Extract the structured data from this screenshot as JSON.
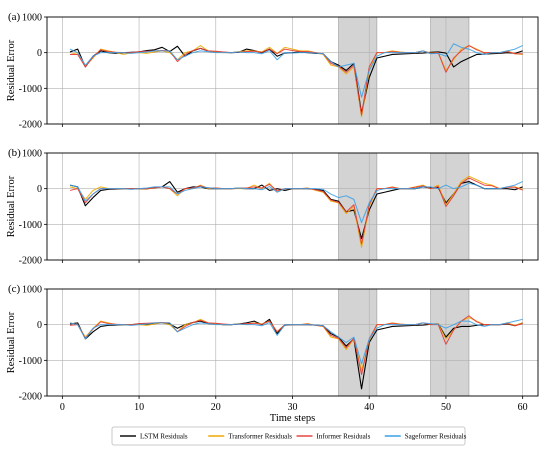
{
  "chart_data": {
    "type": "line",
    "x_label": "Time steps",
    "y_label": "Residual Error",
    "xlim": [
      -2,
      62
    ],
    "ylim": [
      -2000,
      1000
    ],
    "x_ticks": [
      0,
      10,
      20,
      30,
      40,
      50,
      60
    ],
    "y_ticks": [
      1000,
      0,
      -1000,
      -2000
    ],
    "grid": true,
    "legend_position": "bottom-center",
    "shaded_regions": [
      [
        36,
        41
      ],
      [
        48,
        53
      ]
    ],
    "x": [
      1,
      2,
      3,
      4,
      5,
      6,
      7,
      8,
      9,
      10,
      11,
      12,
      13,
      14,
      15,
      16,
      17,
      18,
      19,
      20,
      21,
      22,
      23,
      24,
      25,
      26,
      27,
      28,
      29,
      30,
      31,
      32,
      33,
      34,
      35,
      36,
      37,
      38,
      39,
      40,
      41,
      42,
      43,
      44,
      45,
      46,
      47,
      48,
      49,
      50,
      51,
      52,
      53,
      54,
      55,
      56,
      57,
      58,
      59,
      60
    ],
    "series_styles": [
      {
        "name": "LSTM Residuals",
        "color": "#000000"
      },
      {
        "name": "Transformer Residuals",
        "color": "#f0a800"
      },
      {
        "name": "Informer Residuals",
        "color": "#e53935"
      },
      {
        "name": "Sageformer Residuals",
        "color": "#3aa0e8"
      }
    ],
    "panels": [
      {
        "label": "(a)",
        "series": [
          {
            "name": "LSTM Residuals",
            "values": [
              20,
              100,
              -400,
              -100,
              50,
              0,
              -20,
              0,
              10,
              20,
              60,
              80,
              150,
              30,
              180,
              -100,
              50,
              120,
              50,
              20,
              10,
              0,
              10,
              100,
              60,
              0,
              100,
              -100,
              -10,
              0,
              20,
              0,
              -20,
              -30,
              -250,
              -350,
              -500,
              -300,
              -1700,
              -700,
              -150,
              -100,
              -50,
              -40,
              -30,
              -20,
              -10,
              10,
              20,
              -10,
              -400,
              -250,
              -150,
              -50,
              -40,
              -30,
              -20,
              0,
              -20,
              50
            ]
          },
          {
            "name": "Transformer Residuals",
            "values": [
              -50,
              0,
              -380,
              -150,
              100,
              50,
              0,
              -50,
              0,
              0,
              -20,
              20,
              50,
              0,
              -200,
              0,
              50,
              200,
              50,
              20,
              0,
              0,
              30,
              50,
              50,
              20,
              150,
              -20,
              150,
              100,
              50,
              50,
              0,
              -50,
              -350,
              -400,
              -600,
              -400,
              -1800,
              -500,
              0,
              0,
              50,
              20,
              0,
              0,
              50,
              -10,
              0,
              -500,
              -200,
              100,
              200,
              100,
              0,
              0,
              0,
              50,
              -30,
              -50
            ]
          },
          {
            "name": "Informer Residuals",
            "values": [
              -50,
              -50,
              -400,
              -120,
              80,
              30,
              10,
              0,
              0,
              30,
              40,
              50,
              60,
              50,
              -250,
              -50,
              60,
              120,
              50,
              40,
              20,
              0,
              20,
              30,
              40,
              10,
              100,
              -30,
              100,
              60,
              30,
              30,
              0,
              -30,
              -300,
              -380,
              -550,
              -350,
              -1750,
              -400,
              0,
              0,
              30,
              10,
              0,
              0,
              50,
              -20,
              0,
              -550,
              -150,
              50,
              200,
              80,
              0,
              0,
              0,
              30,
              -30,
              -30
            ]
          },
          {
            "name": "Sageformer Residuals",
            "values": [
              100,
              0,
              -350,
              -100,
              0,
              0,
              0,
              0,
              -20,
              0,
              20,
              50,
              50,
              50,
              -200,
              -100,
              0,
              50,
              30,
              0,
              0,
              0,
              20,
              0,
              0,
              -30,
              60,
              -200,
              0,
              -10,
              0,
              0,
              -10,
              -30,
              -250,
              -400,
              -350,
              -300,
              -1250,
              -500,
              -100,
              0,
              0,
              0,
              0,
              0,
              50,
              -30,
              -20,
              -100,
              250,
              150,
              100,
              0,
              -50,
              0,
              0,
              50,
              100,
              200
            ]
          }
        ]
      },
      {
        "label": "(b)",
        "series": [
          {
            "name": "LSTM Residuals",
            "values": [
              100,
              50,
              -480,
              -250,
              -50,
              -20,
              -10,
              0,
              0,
              0,
              -10,
              30,
              50,
              200,
              -100,
              0,
              50,
              50,
              0,
              0,
              0,
              0,
              10,
              0,
              0,
              100,
              -50,
              0,
              -50,
              0,
              0,
              0,
              -20,
              -50,
              -300,
              -350,
              -650,
              -600,
              -1400,
              -600,
              -150,
              -100,
              -50,
              0,
              0,
              0,
              50,
              20,
              30,
              -400,
              -150,
              150,
              200,
              100,
              0,
              0,
              0,
              0,
              -30,
              50
            ]
          },
          {
            "name": "Transformer Residuals",
            "values": [
              50,
              0,
              -300,
              -50,
              50,
              0,
              0,
              0,
              0,
              0,
              -10,
              20,
              50,
              0,
              -200,
              0,
              0,
              100,
              0,
              20,
              0,
              0,
              0,
              0,
              100,
              0,
              150,
              -100,
              0,
              0,
              0,
              20,
              -50,
              -100,
              -350,
              -400,
              -700,
              -500,
              -1650,
              -500,
              0,
              0,
              50,
              0,
              0,
              50,
              100,
              0,
              100,
              -450,
              -150,
              200,
              350,
              250,
              150,
              100,
              0,
              50,
              50,
              -20
            ]
          },
          {
            "name": "Informer Residuals",
            "values": [
              -50,
              0,
              -400,
              -150,
              0,
              0,
              0,
              0,
              0,
              0,
              0,
              20,
              50,
              0,
              -150,
              0,
              20,
              80,
              20,
              20,
              0,
              0,
              20,
              20,
              50,
              20,
              120,
              -60,
              0,
              0,
              0,
              10,
              -30,
              -80,
              -320,
              -380,
              -650,
              -450,
              -1550,
              -450,
              0,
              0,
              40,
              0,
              0,
              40,
              80,
              0,
              60,
              -500,
              -200,
              150,
              300,
              200,
              100,
              80,
              0,
              40,
              40,
              -40
            ]
          },
          {
            "name": "Sageformer Residuals",
            "values": [
              100,
              50,
              -350,
              -150,
              0,
              0,
              0,
              0,
              -20,
              0,
              20,
              50,
              50,
              50,
              -150,
              -50,
              0,
              50,
              30,
              0,
              0,
              0,
              20,
              0,
              0,
              -30,
              60,
              -100,
              0,
              0,
              0,
              0,
              0,
              -20,
              -150,
              -250,
              -200,
              -300,
              -950,
              -400,
              -50,
              0,
              0,
              0,
              0,
              0,
              50,
              50,
              0,
              100,
              0,
              50,
              150,
              100,
              0,
              0,
              0,
              50,
              100,
              200
            ]
          }
        ]
      },
      {
        "label": "(c)",
        "series": [
          {
            "name": "LSTM Residuals",
            "values": [
              20,
              50,
              -400,
              -200,
              -50,
              -20,
              -10,
              0,
              0,
              20,
              10,
              40,
              50,
              20,
              -100,
              0,
              60,
              100,
              30,
              20,
              0,
              0,
              20,
              50,
              100,
              0,
              150,
              -250,
              -10,
              0,
              0,
              0,
              -10,
              -30,
              -250,
              -350,
              -600,
              -400,
              -1800,
              -500,
              -150,
              -100,
              -50,
              -40,
              -30,
              -20,
              -10,
              10,
              20,
              -350,
              -100,
              -50,
              -50,
              -20,
              0,
              0,
              0,
              20,
              -30,
              50
            ]
          },
          {
            "name": "Transformer Residuals",
            "values": [
              50,
              0,
              -350,
              -100,
              100,
              50,
              0,
              0,
              0,
              0,
              -20,
              20,
              50,
              0,
              -200,
              0,
              50,
              150,
              50,
              20,
              0,
              0,
              30,
              0,
              50,
              20,
              100,
              -200,
              0,
              0,
              0,
              30,
              -20,
              -50,
              -350,
              -400,
              -700,
              -400,
              -1300,
              -450,
              0,
              0,
              50,
              20,
              0,
              0,
              50,
              0,
              20,
              -400,
              -150,
              100,
              200,
              100,
              0,
              0,
              0,
              50,
              -20,
              50
            ]
          },
          {
            "name": "Informer Residuals",
            "values": [
              -20,
              0,
              -380,
              -120,
              80,
              30,
              10,
              0,
              0,
              30,
              40,
              50,
              60,
              50,
              -200,
              -50,
              60,
              120,
              50,
              40,
              20,
              0,
              20,
              30,
              40,
              10,
              100,
              -200,
              0,
              0,
              0,
              20,
              -20,
              -40,
              -300,
              -380,
              -650,
              -380,
              -1400,
              -400,
              0,
              0,
              40,
              10,
              0,
              0,
              50,
              0,
              0,
              -550,
              -150,
              100,
              250,
              80,
              0,
              0,
              0,
              30,
              -30,
              30
            ]
          },
          {
            "name": "Sageformer Residuals",
            "values": [
              50,
              0,
              -400,
              -100,
              0,
              0,
              0,
              0,
              -20,
              0,
              20,
              50,
              50,
              50,
              -200,
              -100,
              0,
              50,
              30,
              0,
              0,
              0,
              20,
              0,
              0,
              -30,
              60,
              -300,
              0,
              0,
              0,
              0,
              -10,
              -30,
              -200,
              -350,
              -500,
              -350,
              -1100,
              -400,
              -100,
              0,
              0,
              0,
              0,
              0,
              50,
              30,
              0,
              -100,
              0,
              100,
              100,
              0,
              -50,
              0,
              0,
              50,
              100,
              150
            ]
          }
        ]
      }
    ]
  }
}
